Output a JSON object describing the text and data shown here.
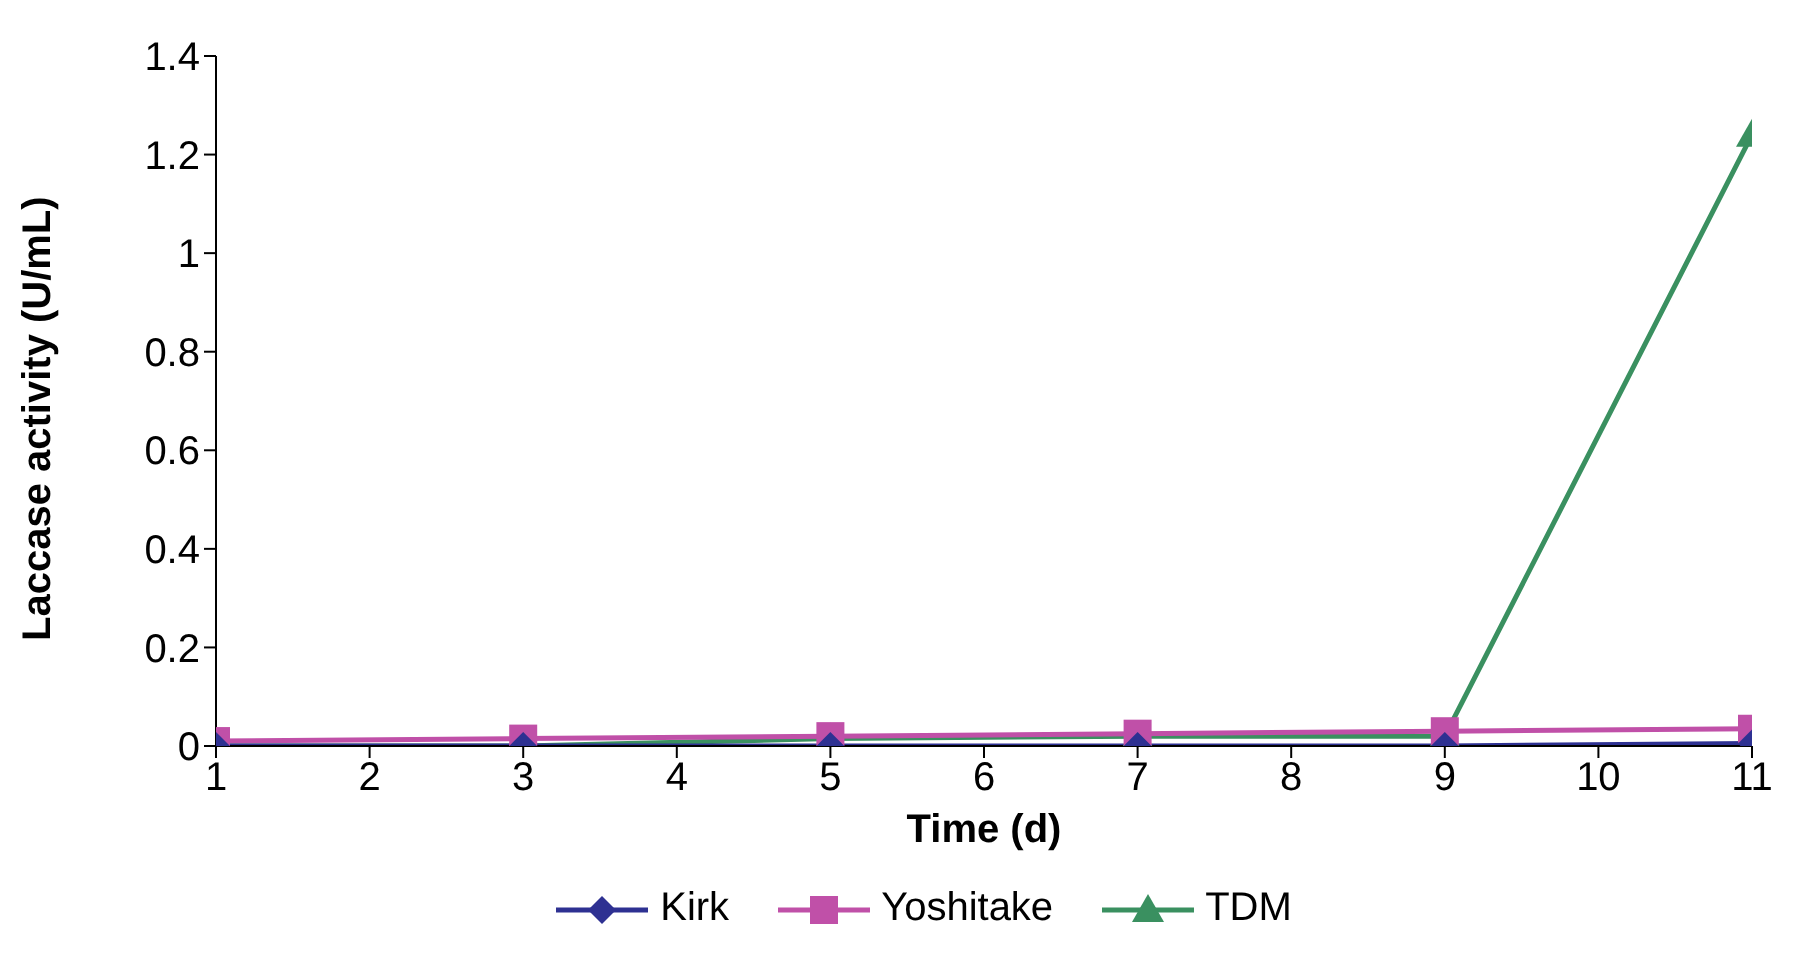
{
  "chart_data": {
    "type": "line",
    "xlabel": "Time (d)",
    "ylabel": "Laccase activity (U/mL)",
    "x": [
      1,
      3,
      5,
      7,
      9,
      11
    ],
    "series": [
      {
        "name": "Kirk",
        "color": "#2e3192",
        "marker": "diamond",
        "values": [
          0,
          0,
          0,
          0,
          0,
          0.005
        ]
      },
      {
        "name": "Yoshitake",
        "color": "#c050a8",
        "marker": "square",
        "values": [
          0.01,
          0.015,
          0.02,
          0.025,
          0.03,
          0.035
        ]
      },
      {
        "name": "TDM",
        "color": "#3a9060",
        "marker": "triangle",
        "values": [
          0,
          0,
          0.015,
          0.02,
          0.02,
          1.24
        ]
      }
    ],
    "xlim": [
      1,
      11
    ],
    "xticks": [
      1,
      2,
      3,
      4,
      5,
      6,
      7,
      8,
      9,
      10,
      11
    ],
    "ylim": [
      0,
      1.4
    ],
    "yticks": [
      0,
      0.2,
      0.4,
      0.6,
      0.8,
      1,
      1.2,
      1.4
    ],
    "grid": false,
    "legend": "bottom"
  }
}
